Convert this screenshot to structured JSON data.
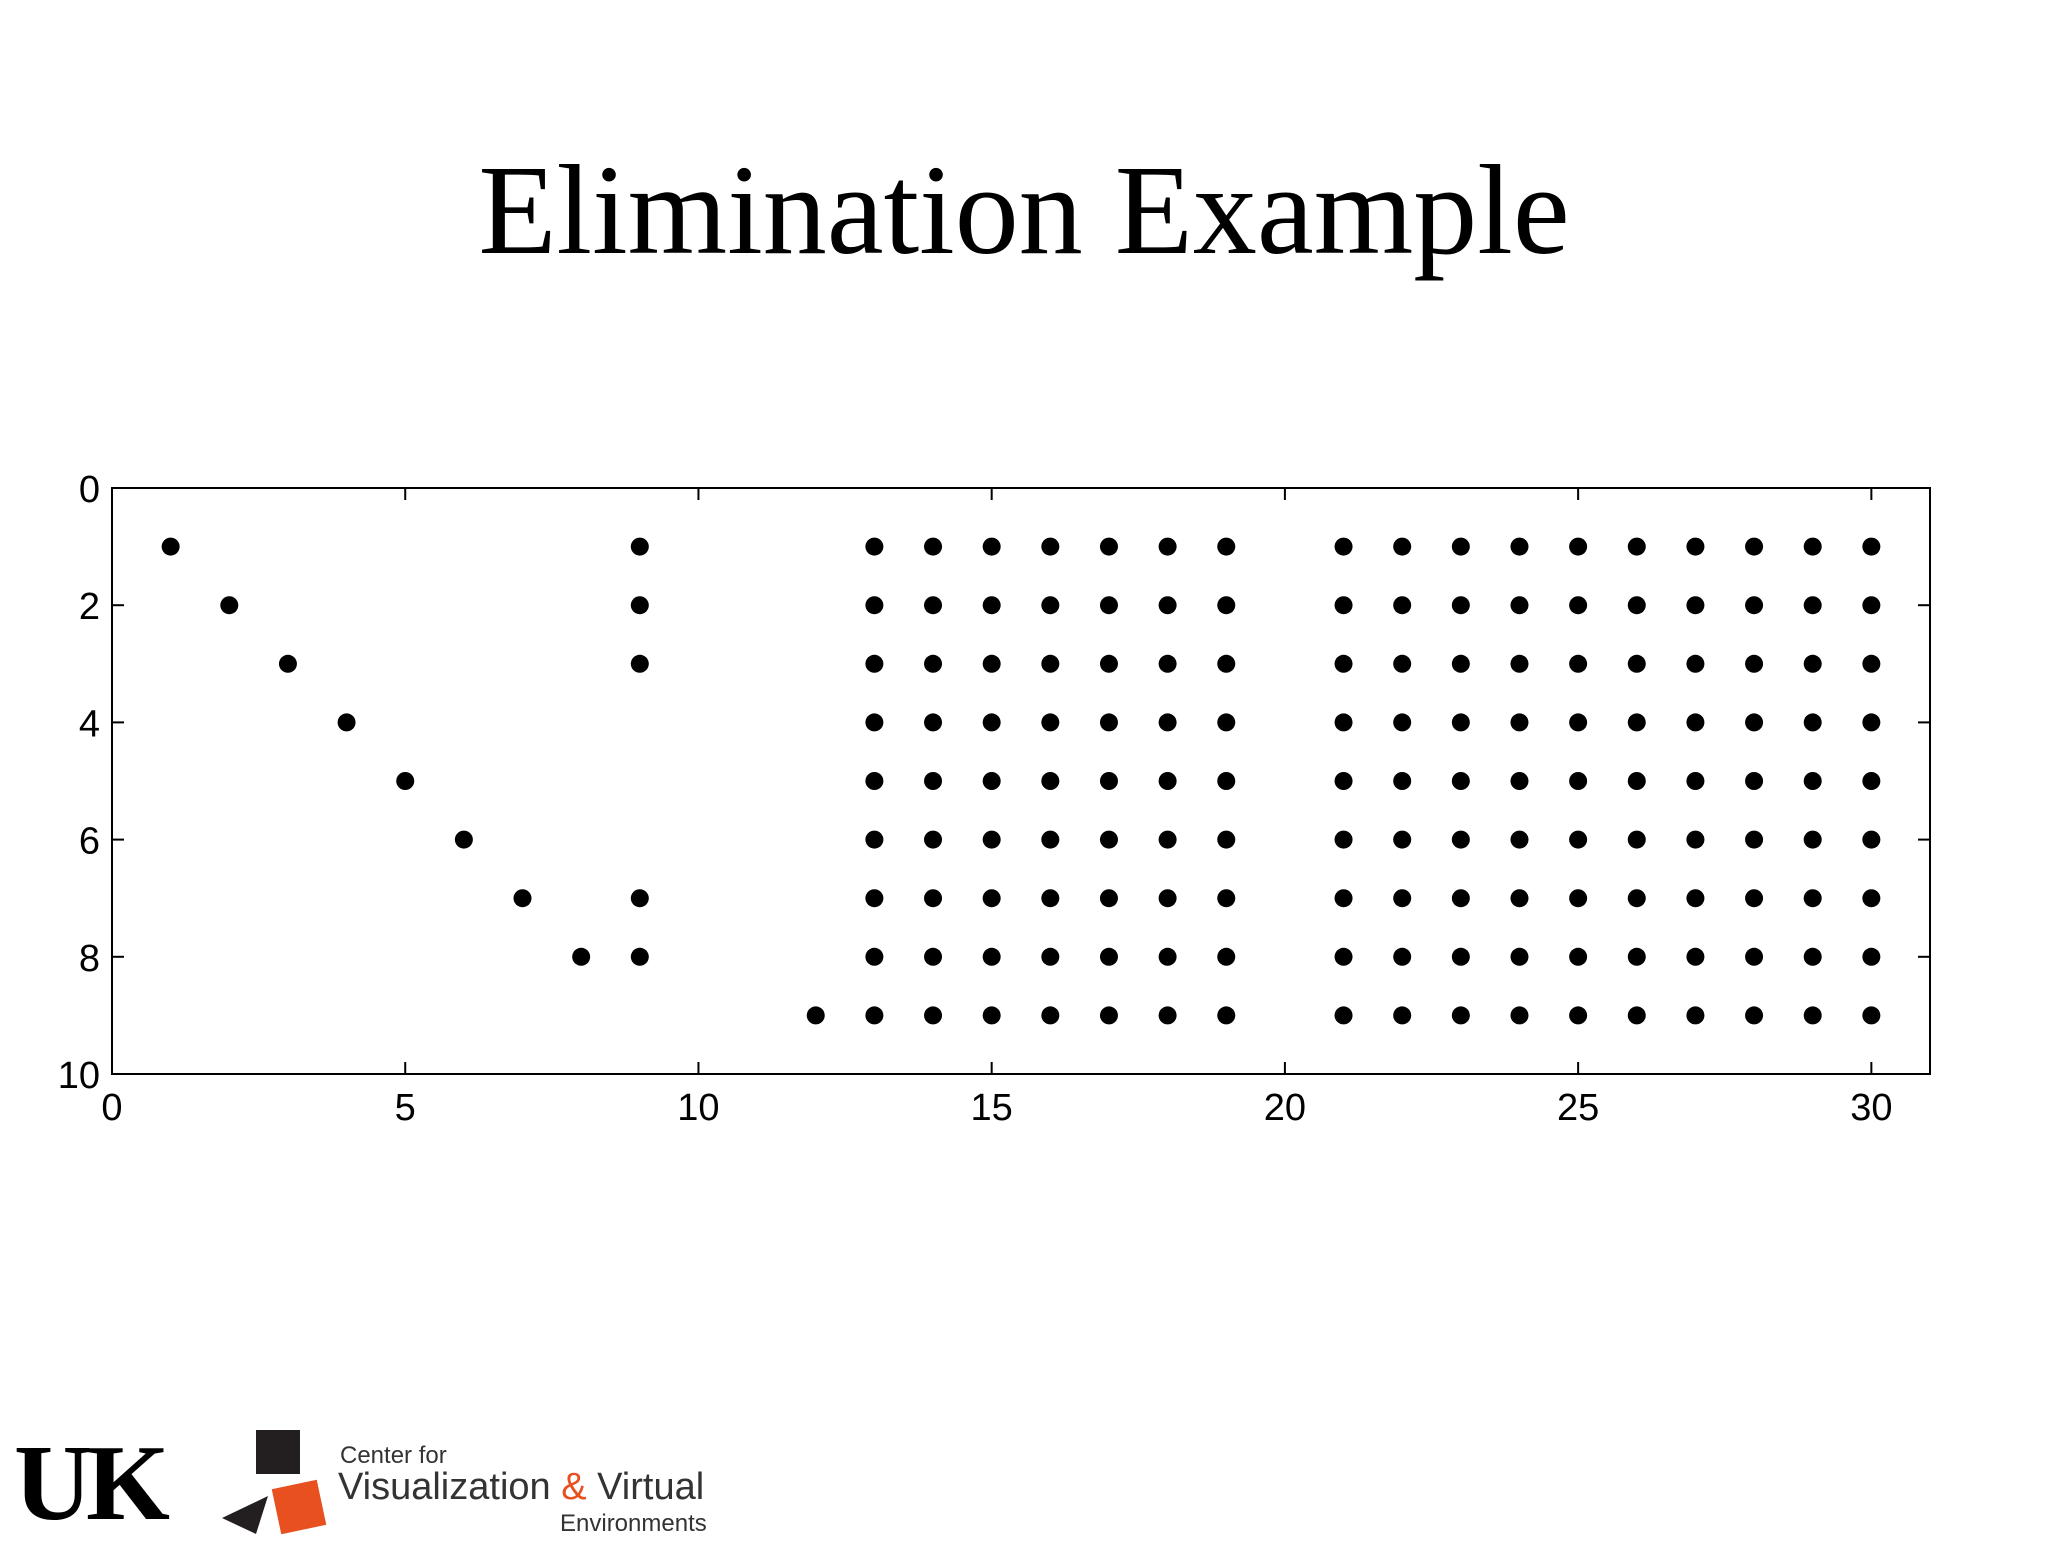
{
  "slide": {
    "title": "Elimination Example"
  },
  "chart_data": {
    "type": "scatter",
    "title": "",
    "xlabel": "",
    "ylabel": "",
    "xlim": [
      0,
      31
    ],
    "ylim": [
      10,
      0
    ],
    "y_axis_reversed": true,
    "grid": false,
    "legend": "none",
    "marker_color": "#000000",
    "x_ticks": [
      0,
      5,
      10,
      15,
      20,
      25,
      30
    ],
    "y_ticks": [
      0,
      2,
      4,
      6,
      8,
      10
    ],
    "series": [
      {
        "points": [
          [
            1,
            1
          ],
          [
            2,
            2
          ],
          [
            3,
            3
          ],
          [
            4,
            4
          ],
          [
            5,
            5
          ],
          [
            6,
            6
          ],
          [
            7,
            7
          ],
          [
            8,
            8
          ],
          [
            9,
            1
          ],
          [
            9,
            2
          ],
          [
            9,
            3
          ],
          [
            9,
            7
          ],
          [
            9,
            8
          ],
          [
            12,
            9
          ],
          [
            13,
            1
          ],
          [
            13,
            2
          ],
          [
            13,
            3
          ],
          [
            13,
            4
          ],
          [
            13,
            5
          ],
          [
            13,
            6
          ],
          [
            13,
            7
          ],
          [
            13,
            8
          ],
          [
            13,
            9
          ],
          [
            14,
            1
          ],
          [
            14,
            2
          ],
          [
            14,
            3
          ],
          [
            14,
            4
          ],
          [
            14,
            5
          ],
          [
            14,
            6
          ],
          [
            14,
            7
          ],
          [
            14,
            8
          ],
          [
            14,
            9
          ],
          [
            15,
            1
          ],
          [
            15,
            2
          ],
          [
            15,
            3
          ],
          [
            15,
            4
          ],
          [
            15,
            5
          ],
          [
            15,
            6
          ],
          [
            15,
            7
          ],
          [
            15,
            8
          ],
          [
            15,
            9
          ],
          [
            16,
            1
          ],
          [
            16,
            2
          ],
          [
            16,
            3
          ],
          [
            16,
            4
          ],
          [
            16,
            5
          ],
          [
            16,
            6
          ],
          [
            16,
            7
          ],
          [
            16,
            8
          ],
          [
            16,
            9
          ],
          [
            17,
            1
          ],
          [
            17,
            2
          ],
          [
            17,
            3
          ],
          [
            17,
            4
          ],
          [
            17,
            5
          ],
          [
            17,
            6
          ],
          [
            17,
            7
          ],
          [
            17,
            8
          ],
          [
            17,
            9
          ],
          [
            18,
            1
          ],
          [
            18,
            2
          ],
          [
            18,
            3
          ],
          [
            18,
            4
          ],
          [
            18,
            5
          ],
          [
            18,
            6
          ],
          [
            18,
            7
          ],
          [
            18,
            8
          ],
          [
            18,
            9
          ],
          [
            19,
            1
          ],
          [
            19,
            2
          ],
          [
            19,
            3
          ],
          [
            19,
            4
          ],
          [
            19,
            5
          ],
          [
            19,
            6
          ],
          [
            19,
            7
          ],
          [
            19,
            8
          ],
          [
            19,
            9
          ],
          [
            21,
            1
          ],
          [
            21,
            2
          ],
          [
            21,
            3
          ],
          [
            21,
            4
          ],
          [
            21,
            5
          ],
          [
            21,
            6
          ],
          [
            21,
            7
          ],
          [
            21,
            8
          ],
          [
            21,
            9
          ],
          [
            22,
            1
          ],
          [
            22,
            2
          ],
          [
            22,
            3
          ],
          [
            22,
            4
          ],
          [
            22,
            5
          ],
          [
            22,
            6
          ],
          [
            22,
            7
          ],
          [
            22,
            8
          ],
          [
            22,
            9
          ],
          [
            23,
            1
          ],
          [
            23,
            2
          ],
          [
            23,
            3
          ],
          [
            23,
            4
          ],
          [
            23,
            5
          ],
          [
            23,
            6
          ],
          [
            23,
            7
          ],
          [
            23,
            8
          ],
          [
            23,
            9
          ],
          [
            24,
            1
          ],
          [
            24,
            2
          ],
          [
            24,
            3
          ],
          [
            24,
            4
          ],
          [
            24,
            5
          ],
          [
            24,
            6
          ],
          [
            24,
            7
          ],
          [
            24,
            8
          ],
          [
            24,
            9
          ],
          [
            25,
            1
          ],
          [
            25,
            2
          ],
          [
            25,
            3
          ],
          [
            25,
            4
          ],
          [
            25,
            5
          ],
          [
            25,
            6
          ],
          [
            25,
            7
          ],
          [
            25,
            8
          ],
          [
            25,
            9
          ],
          [
            26,
            1
          ],
          [
            26,
            2
          ],
          [
            26,
            3
          ],
          [
            26,
            4
          ],
          [
            26,
            5
          ],
          [
            26,
            6
          ],
          [
            26,
            7
          ],
          [
            26,
            8
          ],
          [
            26,
            9
          ],
          [
            27,
            1
          ],
          [
            27,
            2
          ],
          [
            27,
            3
          ],
          [
            27,
            4
          ],
          [
            27,
            5
          ],
          [
            27,
            6
          ],
          [
            27,
            7
          ],
          [
            27,
            8
          ],
          [
            27,
            9
          ],
          [
            28,
            1
          ],
          [
            28,
            2
          ],
          [
            28,
            3
          ],
          [
            28,
            4
          ],
          [
            28,
            5
          ],
          [
            28,
            6
          ],
          [
            28,
            7
          ],
          [
            28,
            8
          ],
          [
            28,
            9
          ],
          [
            29,
            1
          ],
          [
            29,
            2
          ],
          [
            29,
            3
          ],
          [
            29,
            4
          ],
          [
            29,
            5
          ],
          [
            29,
            6
          ],
          [
            29,
            7
          ],
          [
            29,
            8
          ],
          [
            29,
            9
          ],
          [
            30,
            1
          ],
          [
            30,
            2
          ],
          [
            30,
            3
          ],
          [
            30,
            4
          ],
          [
            30,
            5
          ],
          [
            30,
            6
          ],
          [
            30,
            7
          ],
          [
            30,
            8
          ],
          [
            30,
            9
          ]
        ]
      }
    ]
  },
  "footer": {
    "uk_logo_text": "UK",
    "center_line1": "Center for",
    "center_line2_a": "Visualization ",
    "center_line2_amp": "&",
    "center_line2_b": " Virtual",
    "center_line3": "Environments",
    "accent_color": "#e8501f"
  }
}
